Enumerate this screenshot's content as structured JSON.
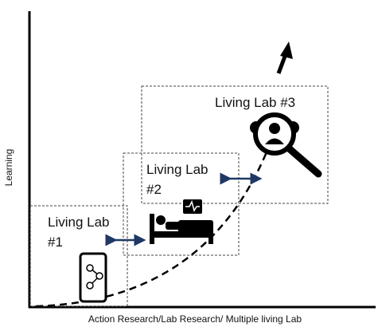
{
  "axes": {
    "y_label": "Learning",
    "x_label": "Action Research/Lab Research/ Multiple living Lab"
  },
  "nodes": [
    {
      "label_lines": [
        "Living Lab",
        "#1"
      ]
    },
    {
      "label_lines": [
        "Living Lab",
        "#2"
      ]
    },
    {
      "label_lines": [
        "Living Lab #3"
      ]
    }
  ]
}
